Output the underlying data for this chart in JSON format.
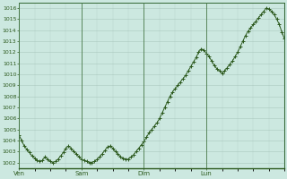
{
  "bg_color": "#cce8e0",
  "line_color": "#2d5a1e",
  "marker_color": "#2d5a1e",
  "grid_color": "#b8d4cc",
  "grid_color_major": "#aac8be",
  "axis_color": "#336633",
  "tick_color": "#2d5a1e",
  "ylim": [
    1001.5,
    1016.5
  ],
  "yticks": [
    1002,
    1003,
    1004,
    1005,
    1006,
    1007,
    1008,
    1009,
    1010,
    1011,
    1012,
    1013,
    1014,
    1015,
    1016
  ],
  "day_labels": [
    "Ven",
    "Sam",
    "Dim",
    "Lun"
  ],
  "pressure_values": [
    1004.5,
    1004.0,
    1003.5,
    1003.2,
    1002.9,
    1002.6,
    1002.4,
    1002.2,
    1002.1,
    1002.2,
    1002.5,
    1002.3,
    1002.1,
    1002.0,
    1002.1,
    1002.3,
    1002.6,
    1002.9,
    1003.3,
    1003.5,
    1003.3,
    1003.0,
    1002.8,
    1002.5,
    1002.3,
    1002.2,
    1002.1,
    1002.0,
    1002.0,
    1002.1,
    1002.3,
    1002.5,
    1002.8,
    1003.1,
    1003.4,
    1003.5,
    1003.3,
    1003.0,
    1002.8,
    1002.5,
    1002.4,
    1002.3,
    1002.3,
    1002.5,
    1002.7,
    1003.0,
    1003.3,
    1003.6,
    1003.9,
    1004.3,
    1004.7,
    1005.0,
    1005.3,
    1005.6,
    1006.0,
    1006.5,
    1007.0,
    1007.5,
    1008.0,
    1008.4,
    1008.7,
    1009.0,
    1009.3,
    1009.6,
    1009.9,
    1010.3,
    1010.7,
    1011.1,
    1011.5,
    1012.0,
    1012.3,
    1012.2,
    1011.9,
    1011.6,
    1011.2,
    1010.8,
    1010.5,
    1010.3,
    1010.1,
    1010.3,
    1010.6,
    1010.9,
    1011.2,
    1011.6,
    1012.0,
    1012.5,
    1013.0,
    1013.5,
    1013.9,
    1014.2,
    1014.5,
    1014.8,
    1015.1,
    1015.4,
    1015.7,
    1016.0,
    1015.9,
    1015.7,
    1015.4,
    1015.0,
    1014.5,
    1013.8,
    1013.2
  ]
}
